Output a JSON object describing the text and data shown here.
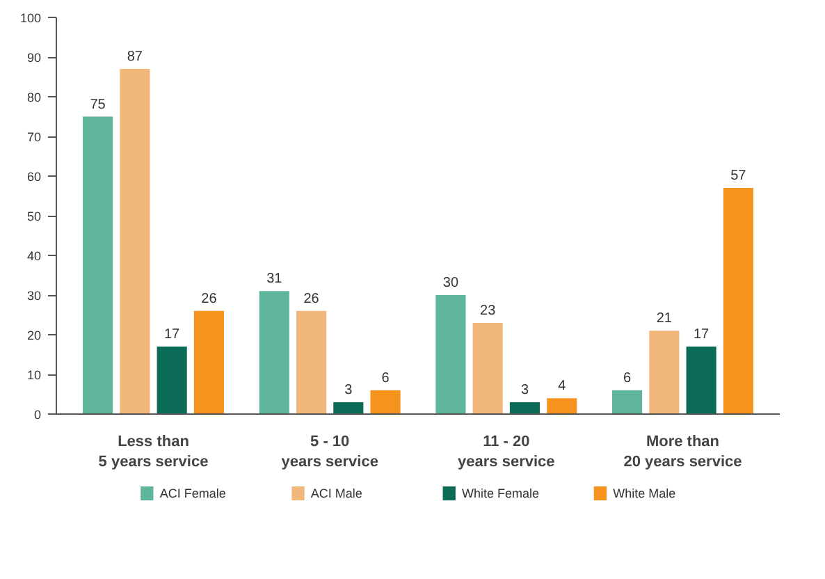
{
  "chart_data": {
    "type": "bar",
    "categories": [
      "Less than\n5 years service",
      "5 - 10\nyears service",
      "11 - 20\nyears service",
      "More than\n20 years service"
    ],
    "series": [
      {
        "name": "ACI Female",
        "color": "#5fb59c",
        "values": [
          75,
          31,
          30,
          6
        ]
      },
      {
        "name": "ACI Male",
        "color": "#f2b77b",
        "values": [
          87,
          26,
          23,
          21
        ]
      },
      {
        "name": "White Female",
        "color": "#0b6b56",
        "values": [
          17,
          3,
          3,
          17
        ]
      },
      {
        "name": "White Male",
        "color": "#f6921e",
        "values": [
          26,
          6,
          4,
          57
        ]
      }
    ],
    "ylim": [
      0,
      100
    ],
    "yticks": [
      0,
      10,
      20,
      30,
      40,
      50,
      60,
      70,
      80,
      90,
      100
    ],
    "data_labels": true,
    "grid": false,
    "legend": "bottom"
  }
}
